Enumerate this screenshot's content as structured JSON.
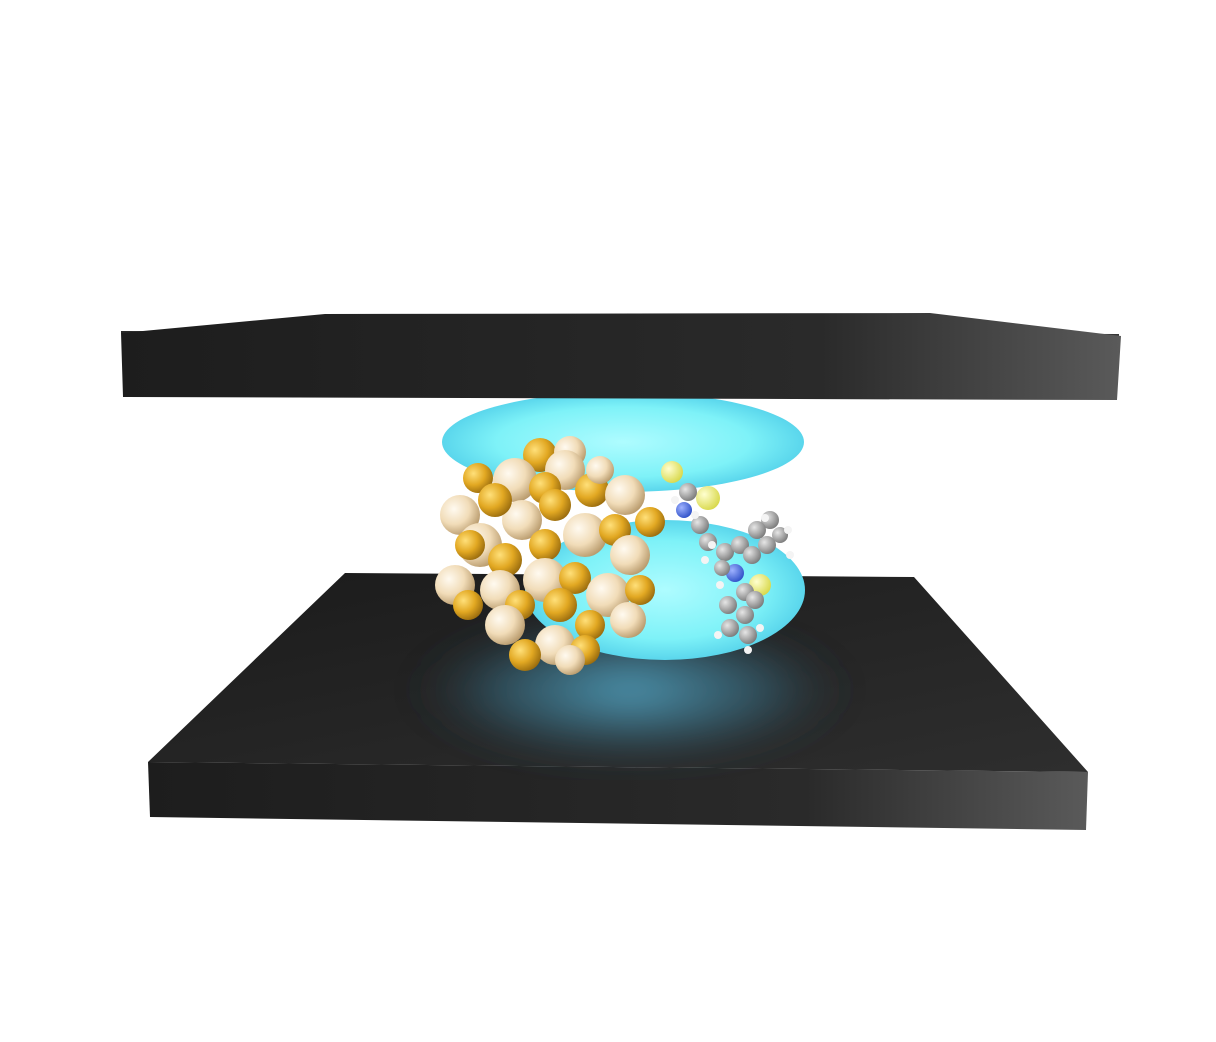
{
  "scene": {
    "description_free": true,
    "colors": {
      "background": "#ffffff",
      "plate_front": "#222222",
      "plate_top": "#3a3a3a",
      "glow": "#7ef2f8",
      "gold_dark": "#e1a824",
      "gold_light": "#f1dcb8",
      "carbon": "#a8a8a8",
      "hydrogen": "#eeeeee",
      "nitrogen": "#4d6ee6",
      "sulfur": "#f0f06a"
    },
    "components": [
      {
        "id": "top-plate",
        "kind": "electrode"
      },
      {
        "id": "bottom-plate",
        "kind": "electrode"
      },
      {
        "id": "plasmon-glow",
        "kind": "field"
      },
      {
        "id": "gold-cluster",
        "kind": "nanocluster"
      },
      {
        "id": "ligand-molecule",
        "kind": "molecule"
      }
    ]
  }
}
